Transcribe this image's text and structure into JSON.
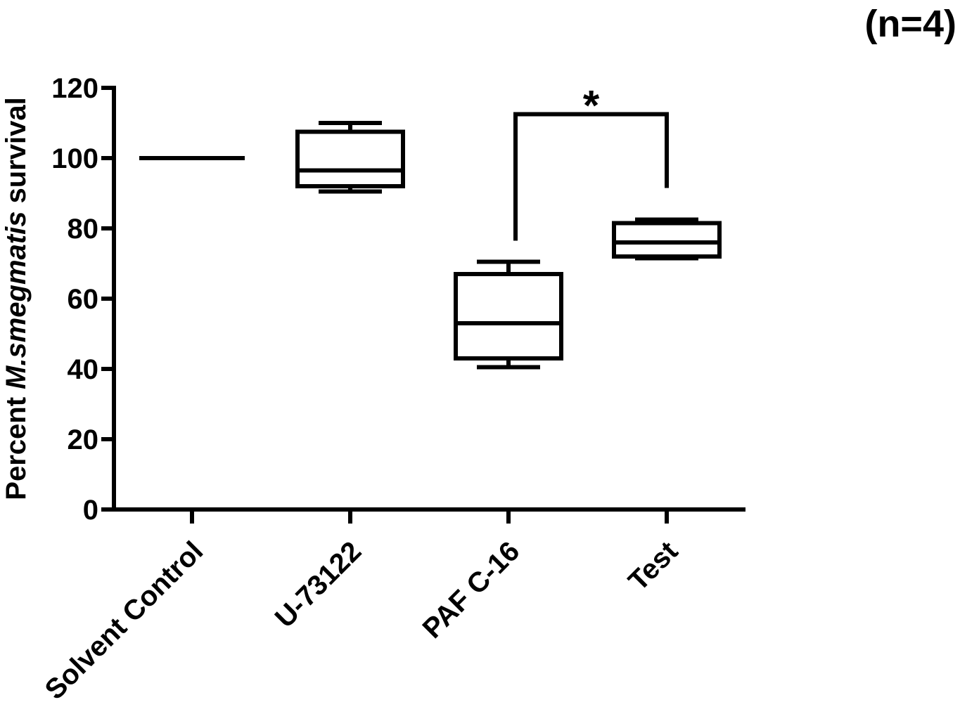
{
  "chart_data": {
    "type": "box",
    "annotation_n": "(n=4)",
    "y_label": {
      "prefix": "Percent",
      "species": "M.smegmatis",
      "suffix": "survival"
    },
    "categories": [
      "Solvent Control",
      "U-73122",
      "PAF C-16",
      "Test"
    ],
    "min": [
      100,
      90.5,
      40.5,
      71.5
    ],
    "q1": [
      100,
      92,
      43,
      72
    ],
    "median": [
      100,
      96.5,
      53,
      76
    ],
    "q3": [
      100,
      107.5,
      67,
      81.5
    ],
    "max": [
      100,
      110,
      70.5,
      82.5
    ],
    "color": "#000000",
    "ylim": [
      0,
      120
    ],
    "yticks": [
      0,
      20,
      40,
      60,
      80,
      100,
      120
    ],
    "significance": {
      "from": "PAF C-16",
      "to": "Test",
      "label": "*"
    }
  }
}
